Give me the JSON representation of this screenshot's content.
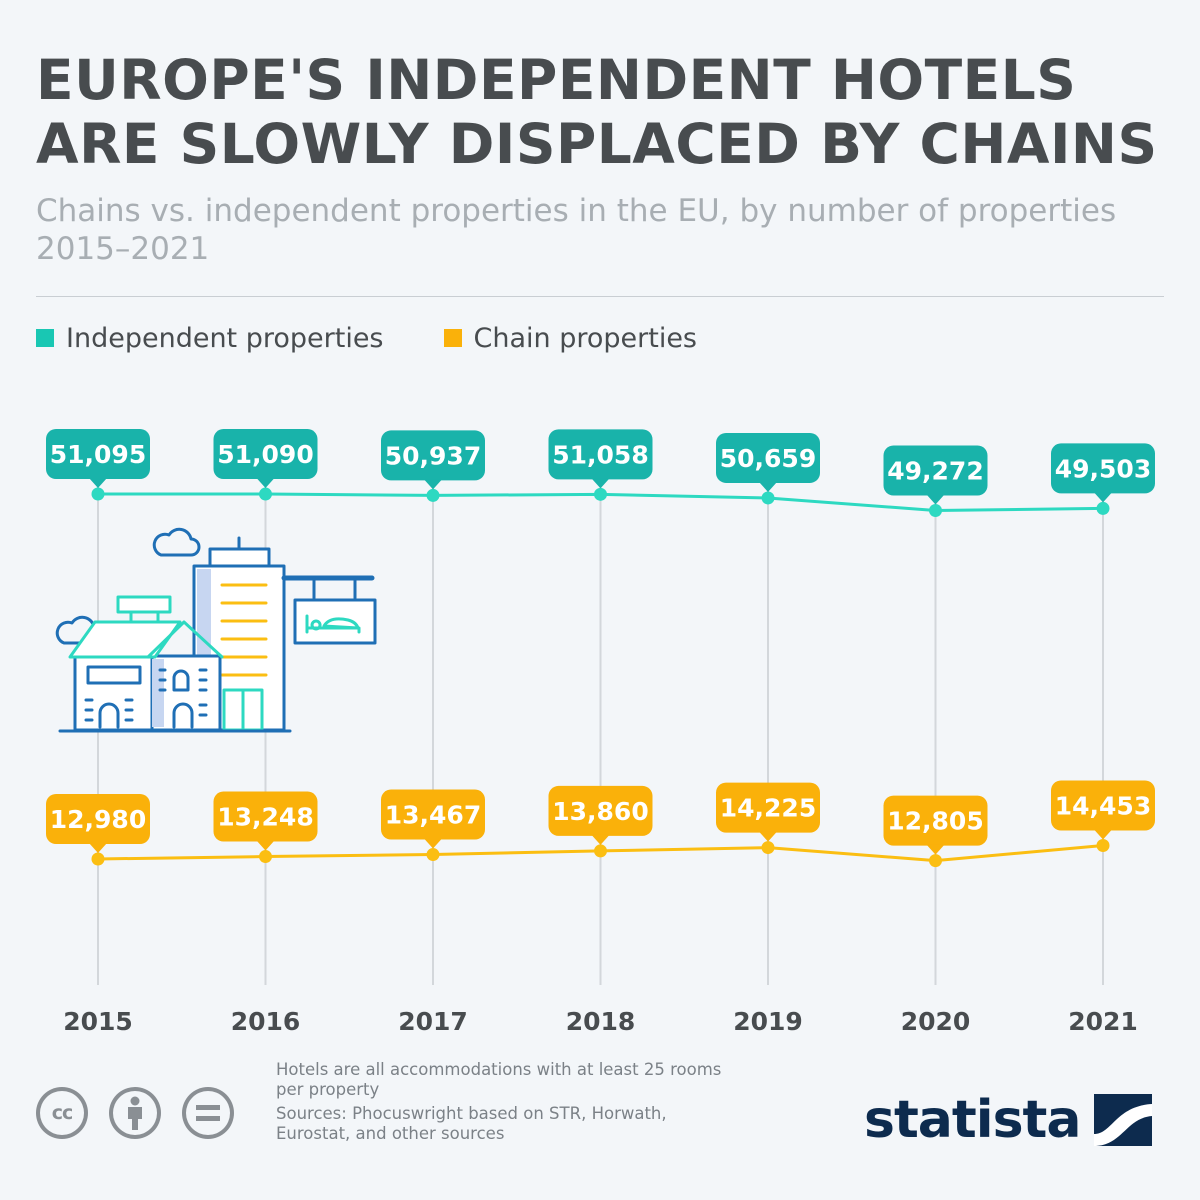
{
  "header": {
    "title": "EUROPE'S INDEPENDENT HOTELS ARE SLOWLY DISPLACED BY CHAINS",
    "subtitle": "Chains vs. independent properties in the EU, by number of properties 2015–2021"
  },
  "legend": {
    "independent": "Independent properties",
    "chain": "Chain properties"
  },
  "colors": {
    "independent_line": "#2dd9c1",
    "independent_badge": "#19b3aa",
    "chain_line": "#fbbe12",
    "chain_badge": "#fab10a",
    "grid": "#d3d7db",
    "axis_text": "#484c4f"
  },
  "chart_data": {
    "type": "line",
    "title": "EUROPE'S INDEPENDENT HOTELS ARE SLOWLY DISPLACED BY CHAINS",
    "subtitle": "Chains vs. independent properties in the EU, by number of properties 2015–2021",
    "x": [
      "2015",
      "2016",
      "2017",
      "2018",
      "2019",
      "2020",
      "2021"
    ],
    "series": [
      {
        "name": "Independent properties",
        "values": [
          51095,
          51090,
          50937,
          51058,
          50659,
          49272,
          49503
        ],
        "labels": [
          "51,095",
          "51,090",
          "50,937",
          "51,058",
          "50,659",
          "49,272",
          "49,503"
        ]
      },
      {
        "name": "Chain properties",
        "values": [
          12980,
          13248,
          13467,
          13860,
          14225,
          12805,
          14453
        ],
        "labels": [
          "12,980",
          "13,248",
          "13,467",
          "13,860",
          "14,225",
          "12,805",
          "14,453"
        ]
      }
    ],
    "grid": "vertical-only",
    "legend_position": "top-left",
    "data_labels": true
  },
  "illustration": {
    "name": "hotel-buildings-illustration"
  },
  "footer": {
    "note": "Hotels are all accommodations with at least 25 rooms per property",
    "sources": "Sources: Phocuswright based on STR, Horwath, Eurostat, and other sources",
    "cc_label": "cc",
    "brand": "statista"
  }
}
